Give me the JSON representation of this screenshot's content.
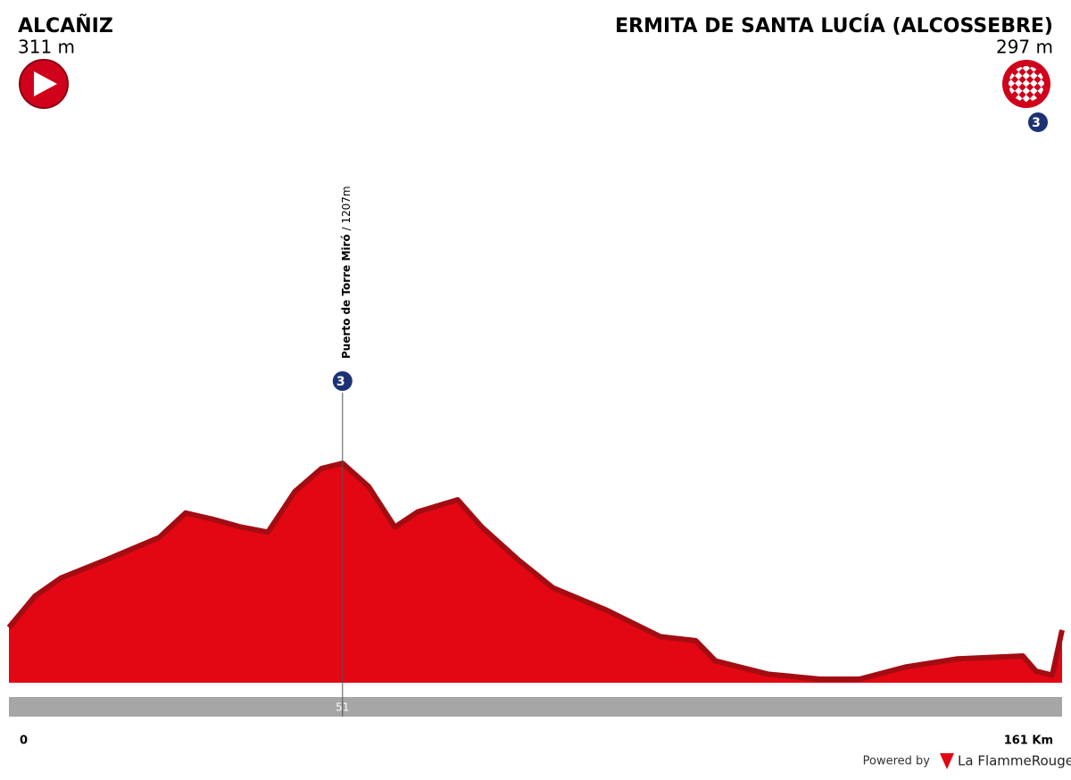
{
  "chart_data": {
    "type": "area",
    "start": {
      "name": "ALCAÑIZ",
      "elevation": "311 m"
    },
    "finish": {
      "name": "ERMITA DE SANTA LUCÍA (ALCOSSEBRE)",
      "elevation": "297 m",
      "category": "3"
    },
    "climb": {
      "name": "Puerto de Torre Miró",
      "elevation": "/ 1207m",
      "category": "3"
    },
    "x": [
      0,
      4,
      8,
      15,
      23,
      27,
      31,
      35.5,
      39.6,
      43.7,
      47.8,
      51,
      55,
      59,
      62.5,
      68.6,
      72.3,
      77.8,
      83.2,
      91.4,
      99.6,
      105,
      108,
      116,
      124,
      130,
      137,
      145,
      155,
      157,
      159.5,
      161
    ],
    "values": [
      311,
      483,
      582,
      682,
      803,
      936,
      903,
      859,
      831,
      1052,
      1179,
      1207,
      1080,
      859,
      942,
      1008,
      859,
      682,
      527,
      405,
      261,
      239,
      129,
      57,
      29,
      29,
      95,
      140,
      156,
      73,
      51,
      297
    ],
    "color": "#e30613",
    "xlim": [
      0,
      161
    ],
    "xticks": [
      0,
      51,
      {
        "value": 161,
        "label": "161 Km"
      }
    ],
    "ylim": [
      0,
      1300
    ]
  },
  "footer": {
    "powered_by": "Powered by",
    "brand": "La FlammeRouge"
  }
}
